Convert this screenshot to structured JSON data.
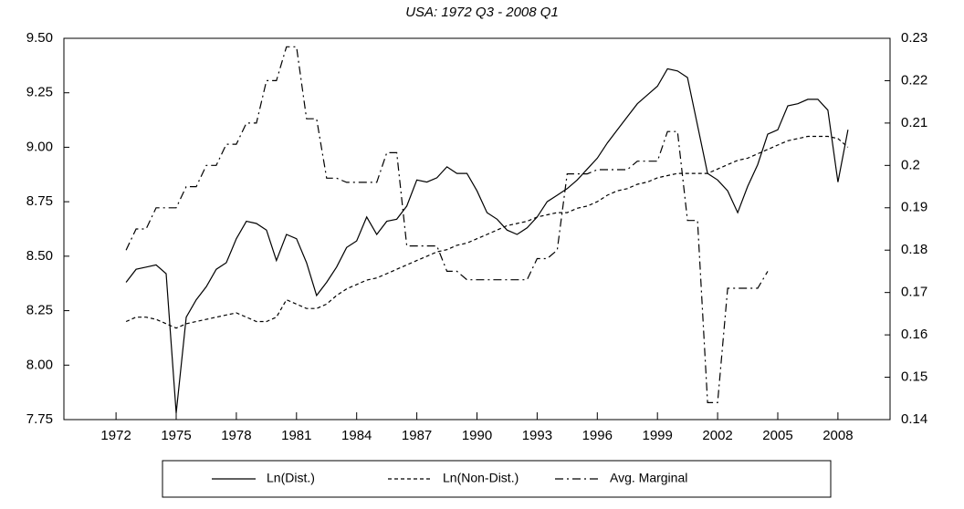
{
  "chart_data": {
    "type": "line",
    "title": "USA: 1972 Q3 - 2008 Q1",
    "x": [
      1972.5,
      1973,
      1973.5,
      1974,
      1974.5,
      1975,
      1975.5,
      1976,
      1976.5,
      1977,
      1977.5,
      1978,
      1978.5,
      1979,
      1979.5,
      1980,
      1980.5,
      1981,
      1981.5,
      1982,
      1982.5,
      1983,
      1983.5,
      1984,
      1984.5,
      1985,
      1985.5,
      1986,
      1986.5,
      1987,
      1987.5,
      1988,
      1988.5,
      1989,
      1989.5,
      1990,
      1990.5,
      1991,
      1991.5,
      1992,
      1992.5,
      1993,
      1993.5,
      1994,
      1994.5,
      1995,
      1995.5,
      1996,
      1996.5,
      1997,
      1997.5,
      1998,
      1998.5,
      1999,
      1999.5,
      2000,
      2000.5,
      2001,
      2001.5,
      2002,
      2002.5,
      2003,
      2003.5,
      2004,
      2004.5,
      2005,
      2005.5,
      2006,
      2006.5,
      2007,
      2007.5,
      2008,
      2008.5
    ],
    "series": [
      {
        "name": "Ln(Dist.)",
        "color": "#000000",
        "style": "solid",
        "axis": "y",
        "values": [
          8.38,
          8.44,
          8.45,
          8.46,
          8.42,
          7.78,
          8.22,
          8.3,
          8.36,
          8.44,
          8.47,
          8.58,
          8.66,
          8.65,
          8.62,
          8.48,
          8.6,
          8.58,
          8.47,
          8.32,
          8.38,
          8.45,
          8.54,
          8.57,
          8.68,
          8.6,
          8.66,
          8.67,
          8.73,
          8.85,
          8.84,
          8.86,
          8.91,
          8.88,
          8.88,
          8.8,
          8.7,
          8.67,
          8.62,
          8.6,
          8.63,
          8.68,
          8.75,
          8.78,
          8.81,
          8.85,
          8.9,
          8.95,
          9.02,
          9.08,
          9.14,
          9.2,
          9.24,
          9.28,
          9.36,
          9.35,
          9.32,
          9.1,
          8.88,
          8.85,
          8.8,
          8.7,
          8.82,
          8.92,
          9.06,
          9.08,
          9.19,
          9.2,
          9.22,
          9.22,
          9.17,
          8.84,
          9.08
        ]
      },
      {
        "name": "Ln(Non-Dist.)",
        "color": "#000000",
        "style": "dashed",
        "axis": "y",
        "values": [
          8.2,
          8.22,
          8.22,
          8.21,
          8.19,
          8.17,
          8.19,
          8.2,
          8.21,
          8.22,
          8.23,
          8.24,
          8.22,
          8.2,
          8.2,
          8.22,
          8.3,
          8.28,
          8.26,
          8.26,
          8.28,
          8.32,
          8.35,
          8.37,
          8.39,
          8.4,
          8.42,
          8.44,
          8.46,
          8.48,
          8.5,
          8.52,
          8.53,
          8.55,
          8.56,
          8.58,
          8.6,
          8.62,
          8.64,
          8.65,
          8.66,
          8.68,
          8.69,
          8.7,
          8.7,
          8.72,
          8.73,
          8.75,
          8.78,
          8.8,
          8.81,
          8.83,
          8.84,
          8.86,
          8.87,
          8.88,
          8.88,
          8.88,
          8.88,
          8.9,
          8.92,
          8.94,
          8.95,
          8.97,
          8.99,
          9.01,
          9.03,
          9.04,
          9.05,
          9.05,
          9.05,
          9.04,
          9.0
        ]
      },
      {
        "name": "Avg. Marginal",
        "color": "#000000",
        "style": "dashdot",
        "axis": "y2",
        "values": [
          0.18,
          0.185,
          0.185,
          0.19,
          0.19,
          0.19,
          0.195,
          0.195,
          0.2,
          0.2,
          0.205,
          0.205,
          0.21,
          0.21,
          0.22,
          0.22,
          0.228,
          0.228,
          0.211,
          0.211,
          0.197,
          0.197,
          0.196,
          0.196,
          0.196,
          0.196,
          0.203,
          0.203,
          0.181,
          0.181,
          0.181,
          0.181,
          0.175,
          0.175,
          0.173,
          0.173,
          0.173,
          0.173,
          0.173,
          0.173,
          0.173,
          0.178,
          0.178,
          0.18,
          0.198,
          0.198,
          0.198,
          0.199,
          0.199,
          0.199,
          0.199,
          0.201,
          0.201,
          0.201,
          0.208,
          0.208,
          0.187,
          0.187,
          0.144,
          0.144,
          0.171,
          0.171,
          0.171,
          0.171,
          0.175,
          null,
          null,
          null,
          null,
          null,
          null,
          null,
          null
        ]
      }
    ],
    "xlim": [
      1969.4,
      2010.6
    ],
    "xticks": [
      1972,
      1975,
      1978,
      1981,
      1984,
      1987,
      1990,
      1993,
      1996,
      1999,
      2002,
      2005,
      2008
    ],
    "ylim": [
      7.75,
      9.5
    ],
    "yticks": [
      {
        "value": 7.75,
        "label": "7.75"
      },
      {
        "value": 8,
        "label": "8.00"
      },
      {
        "value": 8.25,
        "label": "8.25"
      },
      {
        "value": 8.5,
        "label": "8.50"
      },
      {
        "value": 8.75,
        "label": "8.75"
      },
      {
        "value": 9,
        "label": "9.00"
      },
      {
        "value": 9.25,
        "label": "9.25"
      },
      {
        "value": 9.5,
        "label": "9.50"
      }
    ],
    "y2lim": [
      0.14,
      0.23
    ],
    "y2ticks": [
      0.14,
      0.15,
      0.16,
      0.17,
      0.18,
      0.19,
      0.2,
      0.21,
      0.22,
      0.23
    ],
    "grid": false,
    "legend": "bottom"
  }
}
